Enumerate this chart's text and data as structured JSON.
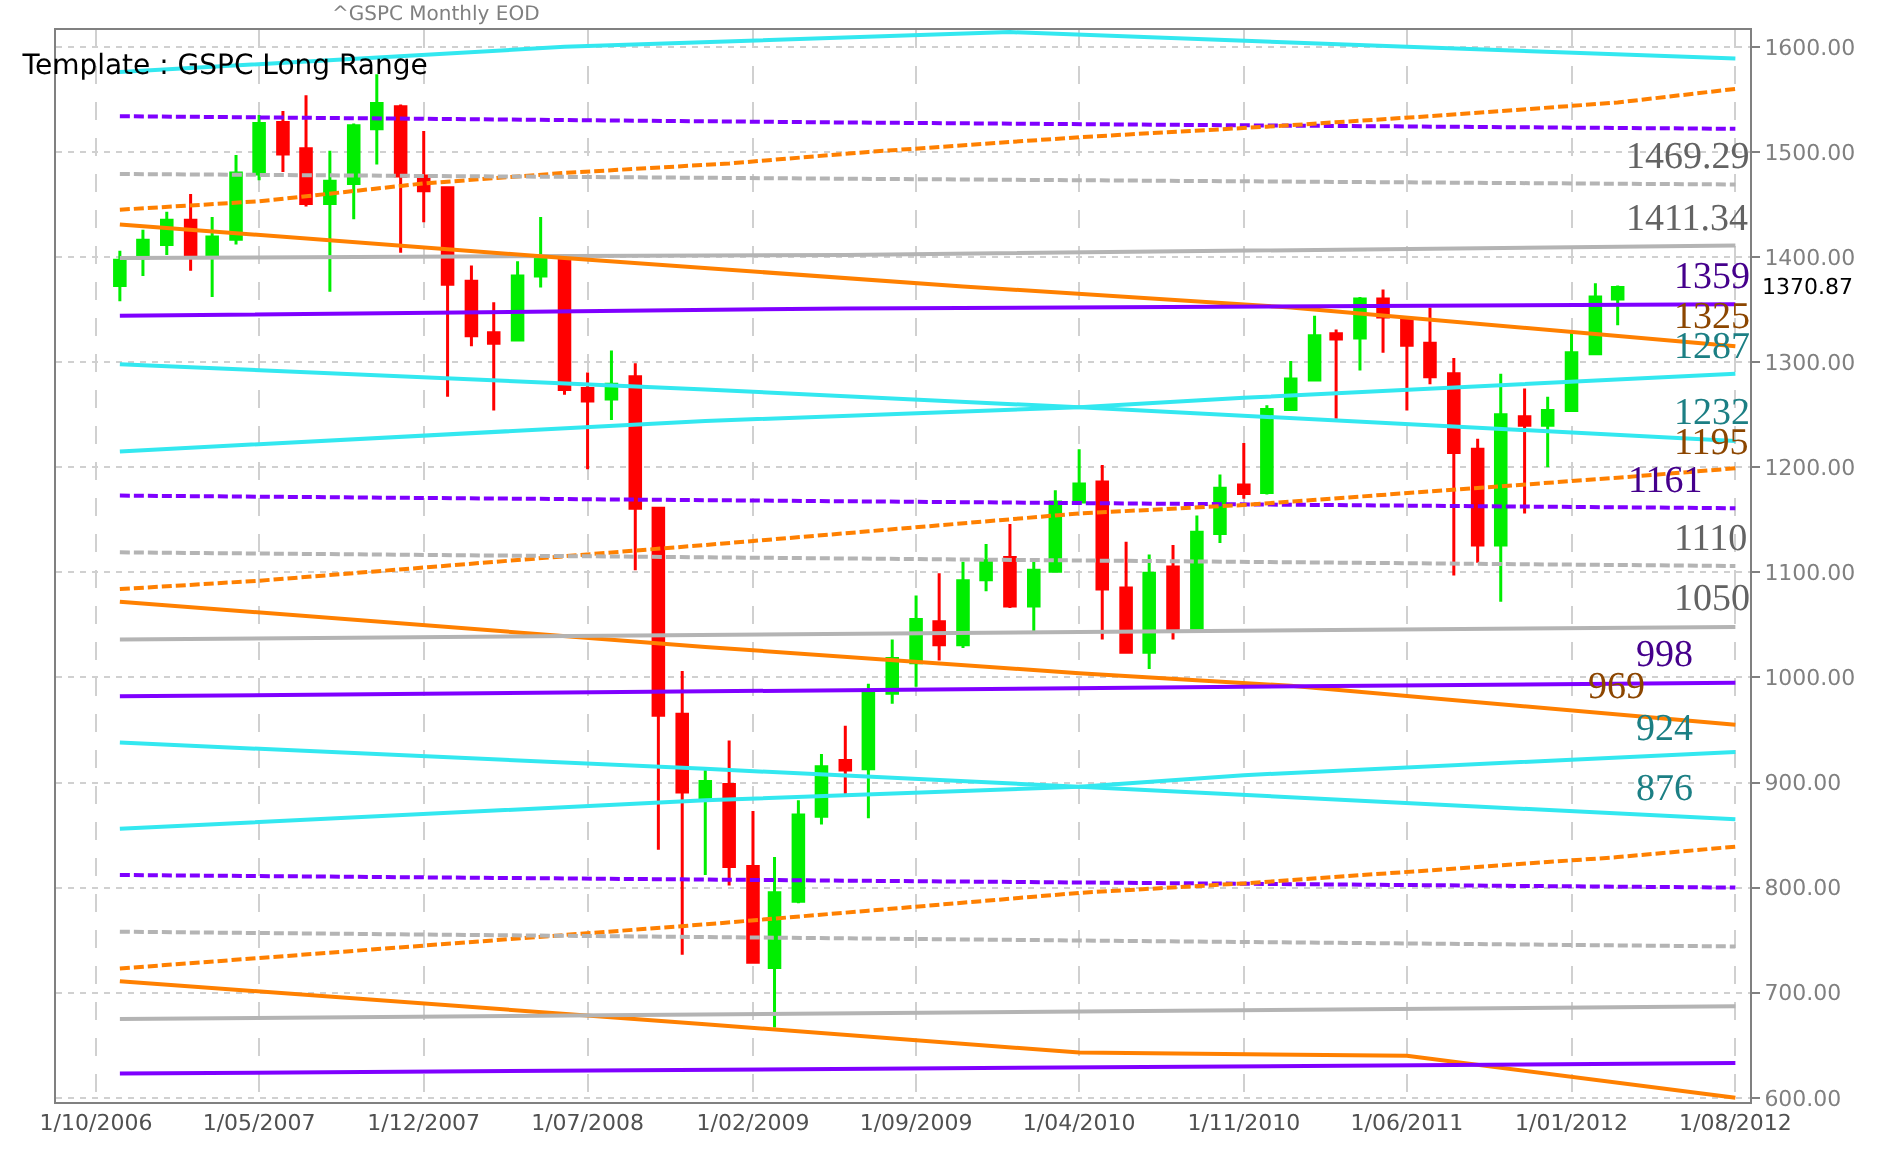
{
  "chart_data": {
    "type": "candlestick",
    "title": "Template : GSPC Long Range",
    "subtitle": "^GSPC Monthly EOD",
    "x": [
      "2006-11",
      "2006-12",
      "2007-01",
      "2007-02",
      "2007-03",
      "2007-04",
      "2007-05",
      "2007-06",
      "2007-07",
      "2007-08",
      "2007-09",
      "2007-10",
      "2007-11",
      "2007-12",
      "2008-01",
      "2008-02",
      "2008-03",
      "2008-04",
      "2008-05",
      "2008-06",
      "2008-07",
      "2008-08",
      "2008-09",
      "2008-10",
      "2008-11",
      "2008-12",
      "2009-01",
      "2009-02",
      "2009-03",
      "2009-04",
      "2009-05",
      "2009-06",
      "2009-07",
      "2009-08",
      "2009-09",
      "2009-10",
      "2009-11",
      "2009-12",
      "2010-01",
      "2010-02",
      "2010-03",
      "2010-04",
      "2010-05",
      "2010-06",
      "2010-07",
      "2010-08",
      "2010-09",
      "2010-10",
      "2010-11",
      "2010-12",
      "2011-01",
      "2011-02",
      "2011-03",
      "2011-04",
      "2011-05",
      "2011-06",
      "2011-07",
      "2011-08",
      "2011-09",
      "2011-10",
      "2011-11",
      "2011-12",
      "2012-01",
      "2012-02",
      "2012-03"
    ],
    "ohlc": [
      [
        1373,
        1406,
        1358,
        1397
      ],
      [
        1399,
        1426,
        1382,
        1416
      ],
      [
        1412,
        1443,
        1402,
        1435
      ],
      [
        1435,
        1460,
        1387,
        1402
      ],
      [
        1402,
        1438,
        1362,
        1419
      ],
      [
        1417,
        1497,
        1412,
        1480
      ],
      [
        1479,
        1535,
        1473,
        1527
      ],
      [
        1528,
        1539,
        1481,
        1498
      ],
      [
        1503,
        1554,
        1448,
        1451
      ],
      [
        1451,
        1501,
        1367,
        1472
      ],
      [
        1470,
        1527,
        1436,
        1525
      ],
      [
        1522,
        1574,
        1488,
        1546
      ],
      [
        1543,
        1545,
        1404,
        1477
      ],
      [
        1477,
        1520,
        1433,
        1463
      ],
      [
        1466,
        1467,
        1267,
        1374
      ],
      [
        1377,
        1392,
        1315,
        1325
      ],
      [
        1328,
        1357,
        1254,
        1318
      ],
      [
        1321,
        1396,
        1320,
        1382
      ],
      [
        1382,
        1438,
        1371,
        1399
      ],
      [
        1397,
        1399,
        1269,
        1274
      ],
      [
        1275,
        1290,
        1198,
        1263
      ],
      [
        1265,
        1311,
        1245,
        1279
      ],
      [
        1286,
        1299,
        1102,
        1161
      ],
      [
        1161,
        1162,
        836,
        964
      ],
      [
        965,
        1006,
        736,
        891
      ],
      [
        883,
        914,
        812,
        901
      ],
      [
        898,
        940,
        802,
        820
      ],
      [
        820,
        873,
        728,
        729
      ],
      [
        724,
        829,
        667,
        795
      ],
      [
        787,
        883,
        785,
        869
      ],
      [
        868,
        927,
        860,
        915
      ],
      [
        921,
        954,
        889,
        912
      ],
      [
        913,
        994,
        866,
        985
      ],
      [
        985,
        1036,
        975,
        1018
      ],
      [
        1014,
        1078,
        991,
        1055
      ],
      [
        1053,
        1099,
        1016,
        1031
      ],
      [
        1031,
        1110,
        1028,
        1092
      ],
      [
        1093,
        1127,
        1082,
        1111
      ],
      [
        1114,
        1146,
        1066,
        1068
      ],
      [
        1068,
        1110,
        1043,
        1102
      ],
      [
        1101,
        1178,
        1100,
        1167
      ],
      [
        1167,
        1217,
        1166,
        1184
      ],
      [
        1186,
        1202,
        1036,
        1084
      ],
      [
        1085,
        1129,
        1023,
        1024
      ],
      [
        1024,
        1117,
        1008,
        1099
      ],
      [
        1105,
        1126,
        1036,
        1046
      ],
      [
        1046,
        1154,
        1045,
        1138
      ],
      [
        1137,
        1193,
        1128,
        1180
      ],
      [
        1183,
        1223,
        1170,
        1175
      ],
      [
        1176,
        1259,
        1174,
        1255
      ],
      [
        1255,
        1301,
        1254,
        1284
      ],
      [
        1283,
        1344,
        1282,
        1325
      ],
      [
        1327,
        1331,
        1246,
        1322
      ],
      [
        1323,
        1362,
        1292,
        1360
      ],
      [
        1360,
        1369,
        1309,
        1343
      ],
      [
        1340,
        1341,
        1254,
        1316
      ],
      [
        1318,
        1352,
        1279,
        1286
      ],
      [
        1289,
        1304,
        1097,
        1214
      ],
      [
        1217,
        1227,
        1109,
        1126
      ],
      [
        1126,
        1289,
        1072,
        1250
      ],
      [
        1248,
        1275,
        1156,
        1240
      ],
      [
        1240,
        1267,
        1200,
        1254
      ],
      [
        1254,
        1328,
        1253,
        1309
      ],
      [
        1308,
        1375,
        1307,
        1362
      ],
      [
        1360,
        1373,
        1335,
        1370.87
      ]
    ],
    "colors": [
      "#00ee00",
      "#00ee00",
      "#00ee00",
      "#ff0000",
      "#00ee00",
      "#00ee00",
      "#00ee00",
      "#ff0000",
      "#ff0000",
      "#00ee00",
      "#00ee00",
      "#00ee00",
      "#ff0000",
      "#ff0000",
      "#ff0000",
      "#ff0000",
      "#ff0000",
      "#00ee00",
      "#00ee00",
      "#ff0000",
      "#ff0000",
      "#00ee00",
      "#ff0000",
      "#ff0000",
      "#ff0000",
      "#00ee00",
      "#ff0000",
      "#ff0000",
      "#00ee00",
      "#00ee00",
      "#00ee00",
      "#ff0000",
      "#00ee00",
      "#00ee00",
      "#00ee00",
      "#ff0000",
      "#00ee00",
      "#00ee00",
      "#ff0000",
      "#00ee00",
      "#00ee00",
      "#00ee00",
      "#ff0000",
      "#ff0000",
      "#00ee00",
      "#ff0000",
      "#00ee00",
      "#00ee00",
      "#ff0000",
      "#00ee00",
      "#00ee00",
      "#00ee00",
      "#ff0000",
      "#00ee00",
      "#ff0000",
      "#ff0000",
      "#ff0000",
      "#ff0000",
      "#ff0000",
      "#00ee00",
      "#ff0000",
      "#00ee00",
      "#00ee00",
      "#00ee00",
      "#00ee00"
    ],
    "series": [
      {
        "type": "line",
        "color": "#33e8f0",
        "x": [
          "2006-11",
          "2008-06",
          "2010-01",
          "2011-06",
          "2012-08"
        ],
        "values": [
          1576,
          1600,
          1614,
          1600,
          1589
        ]
      },
      {
        "type": "line",
        "color": "#7f00ff",
        "line_style": "dashed",
        "x": [
          "2006-11",
          "2009-06",
          "2012-08"
        ],
        "values": [
          1534,
          1528,
          1522
        ]
      },
      {
        "type": "line",
        "color": "#ff8000",
        "line_style": "dashed",
        "x": [
          "2006-11",
          "2007-05",
          "2007-12",
          "2008-06",
          "2009-01",
          "2009-07",
          "2010-04",
          "2010-12",
          "2011-07",
          "2012-03",
          "2012-08"
        ],
        "values": [
          1445,
          1453,
          1470,
          1480,
          1489,
          1500,
          1514,
          1524,
          1534,
          1547,
          1560
        ]
      },
      {
        "type": "line",
        "color": "#b4b4b4",
        "line_style": "dashed",
        "x": [
          "2006-11",
          "2012-08"
        ],
        "values": [
          1479,
          1469
        ]
      },
      {
        "type": "line",
        "color": "#b4b4b4",
        "x": [
          "2006-11",
          "2009-06",
          "2012-08"
        ],
        "values": [
          1399,
          1402,
          1411
        ]
      },
      {
        "type": "line",
        "color": "#ff8000",
        "x": [
          "2006-11",
          "2008-06",
          "2009-11",
          "2011-01",
          "2012-08"
        ],
        "values": [
          1431,
          1399,
          1372,
          1352,
          1315
        ]
      },
      {
        "type": "line",
        "color": "#7f00ff",
        "x": [
          "2006-11",
          "2009-06",
          "2012-08"
        ],
        "values": [
          1344,
          1351,
          1355
        ]
      },
      {
        "type": "line",
        "color": "#33e8f0",
        "x": [
          "2006-11",
          "2008-12",
          "2010-04",
          "2012-08"
        ],
        "values": [
          1298,
          1274,
          1257,
          1225
        ]
      },
      {
        "type": "line",
        "color": "#33e8f0",
        "x": [
          "2006-11",
          "2008-12",
          "2010-04",
          "2010-11",
          "2012-08"
        ],
        "values": [
          1215,
          1244,
          1257,
          1266,
          1289
        ]
      },
      {
        "type": "line",
        "color": "#7f00ff",
        "line_style": "dashed",
        "x": [
          "2006-11",
          "2012-08"
        ],
        "values": [
          1173,
          1161
        ]
      },
      {
        "type": "line",
        "color": "#ff8000",
        "line_style": "dashed",
        "x": [
          "2006-11",
          "2007-05",
          "2008-12",
          "2009-07",
          "2010-04",
          "2010-11",
          "2012-03",
          "2012-08"
        ],
        "values": [
          1084,
          1092,
          1126,
          1139,
          1156,
          1164,
          1190,
          1199
        ]
      },
      {
        "type": "line",
        "color": "#b4b4b4",
        "line_style": "dashed",
        "x": [
          "2006-11",
          "2012-08"
        ],
        "values": [
          1119,
          1106
        ]
      },
      {
        "type": "line",
        "color": "#ff8000",
        "x": [
          "2006-11",
          "2008-12",
          "2010-04",
          "2011-01",
          "2012-08"
        ],
        "values": [
          1072,
          1029,
          1004,
          992,
          955
        ]
      },
      {
        "type": "line",
        "color": "#b4b4b4",
        "x": [
          "2006-11",
          "2012-08"
        ],
        "values": [
          1036,
          1048
        ]
      },
      {
        "type": "line",
        "color": "#7f00ff",
        "x": [
          "2006-11",
          "2012-08"
        ],
        "values": [
          982,
          995
        ]
      },
      {
        "type": "line",
        "color": "#33e8f0",
        "x": [
          "2006-11",
          "2008-12",
          "2010-04",
          "2012-08"
        ],
        "values": [
          938,
          913,
          896,
          865
        ]
      },
      {
        "type": "line",
        "color": "#33e8f0",
        "x": [
          "2006-11",
          "2008-12",
          "2010-04",
          "2010-11",
          "2012-08"
        ],
        "values": [
          856,
          883,
          896,
          907,
          929
        ]
      },
      {
        "type": "line",
        "color": "#7f00ff",
        "line_style": "dashed",
        "x": [
          "2006-11",
          "2012-08"
        ],
        "values": [
          812,
          800
        ]
      },
      {
        "type": "line",
        "color": "#ff8000",
        "line_style": "dashed",
        "x": [
          "2006-11",
          "2008-12",
          "2009-07",
          "2010-04",
          "2010-11",
          "2012-03",
          "2012-08"
        ],
        "values": [
          723,
          765,
          778,
          795,
          804,
          829,
          839
        ]
      },
      {
        "type": "line",
        "color": "#b4b4b4",
        "line_style": "dashed",
        "x": [
          "2006-11",
          "2012-08"
        ],
        "values": [
          758,
          744
        ]
      },
      {
        "type": "line",
        "color": "#ff8000",
        "x": [
          "2006-11",
          "2008-12",
          "2010-04",
          "2011-06",
          "2012-08"
        ],
        "values": [
          711,
          670,
          643,
          640,
          600
        ]
      },
      {
        "type": "line",
        "color": "#b4b4b4",
        "x": [
          "2006-11",
          "2012-08"
        ],
        "values": [
          675,
          687
        ]
      },
      {
        "type": "line",
        "color": "#7f00ff",
        "x": [
          "2006-11",
          "2012-08"
        ],
        "values": [
          623,
          633
        ]
      }
    ],
    "annotations": [
      {
        "text": "1469.29",
        "x": "2012-06",
        "y": 1470
      },
      {
        "text": "1411.34",
        "x": "2012-06",
        "y": 1411
      },
      {
        "text": "1359",
        "x": "2012-07",
        "y": 1355
      },
      {
        "text": "1325",
        "x": "2012-07",
        "y": 1317
      },
      {
        "text": "1287",
        "x": "2012-07",
        "y": 1288
      },
      {
        "text": "1232",
        "x": "2012-07",
        "y": 1226
      },
      {
        "text": "1195",
        "x": "2012-07",
        "y": 1197
      },
      {
        "text": "1161",
        "x": "2012-05",
        "y": 1162
      },
      {
        "text": "1110",
        "x": "2012-07",
        "y": 1106
      },
      {
        "text": "1050",
        "x": "2012-07",
        "y": 1048
      },
      {
        "text": "998",
        "x": "2012-05",
        "y": 995
      },
      {
        "text": "969",
        "x": "2012-03",
        "y": 965
      },
      {
        "text": "924",
        "x": "2012-05",
        "y": 926
      },
      {
        "text": "876",
        "x": "2012-05",
        "y": 868
      },
      "1370.87"
    ],
    "xlim": [
      "2006-08-10",
      "2012-08-20"
    ],
    "xticks": [
      {
        "value": "2006-10",
        "label": "1/10/2006"
      },
      {
        "value": "2007-05",
        "label": "1/05/2007"
      },
      {
        "value": "2007-12",
        "label": "1/12/2007"
      },
      {
        "value": "2008-07",
        "label": "1/07/2008"
      },
      {
        "value": "2009-02",
        "label": "1/02/2009"
      },
      {
        "value": "2009-09",
        "label": "1/09/2009"
      },
      {
        "value": "2010-04",
        "label": "1/04/2010"
      },
      {
        "value": "2010-11",
        "label": "1/11/2010"
      },
      {
        "value": "2011-06",
        "label": "1/06/2011"
      },
      {
        "value": "2012-01",
        "label": "1/01/2012"
      },
      {
        "value": "2012-08",
        "label": "1/08/2012"
      }
    ],
    "ylim": [
      596,
      1616
    ],
    "yticks": [
      {
        "value": 600,
        "label": "600.00"
      },
      {
        "value": 700,
        "label": "700.00"
      },
      {
        "value": 800,
        "label": "800.00"
      },
      {
        "value": 900,
        "label": "900.00"
      },
      {
        "value": 1000,
        "label": "1000.00"
      },
      {
        "value": 1100,
        "label": "1100.00"
      },
      {
        "value": 1200,
        "label": "1200.00"
      },
      {
        "value": 1300,
        "label": "1300.00"
      },
      {
        "value": 1400,
        "label": "1400.00"
      },
      {
        "value": 1500,
        "label": "1500.00"
      },
      {
        "value": 1600,
        "label": "1600.00"
      }
    ],
    "grid": true
  }
}
